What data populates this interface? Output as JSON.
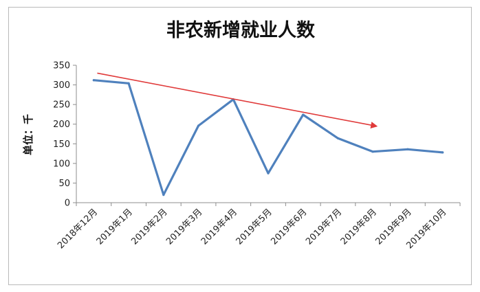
{
  "chart_data": {
    "type": "line",
    "title": "非农新增就业人数",
    "ylabel": "单位：千",
    "xlabel": "",
    "ylim": [
      0,
      350
    ],
    "yticks": [
      0,
      50,
      100,
      150,
      200,
      250,
      300,
      350
    ],
    "grid": false,
    "legend": "none",
    "categories": [
      "2018年12月",
      "2019年1月",
      "2019年2月",
      "2019年3月",
      "2019年4月",
      "2019年5月",
      "2019年6月",
      "2019年7月",
      "2019年8月",
      "2019年9月",
      "2019年10月"
    ],
    "series": [
      {
        "values": [
          312,
          304,
          20,
          196,
          263,
          75,
          224,
          164,
          130,
          136,
          128
        ],
        "color": "#4f81bd"
      }
    ],
    "annotations": [
      {
        "type": "trend-arrow",
        "from_category": 0.6,
        "from_value": 330,
        "to_category": 8.6,
        "to_value": 195,
        "color": "#e03a3a"
      }
    ]
  }
}
